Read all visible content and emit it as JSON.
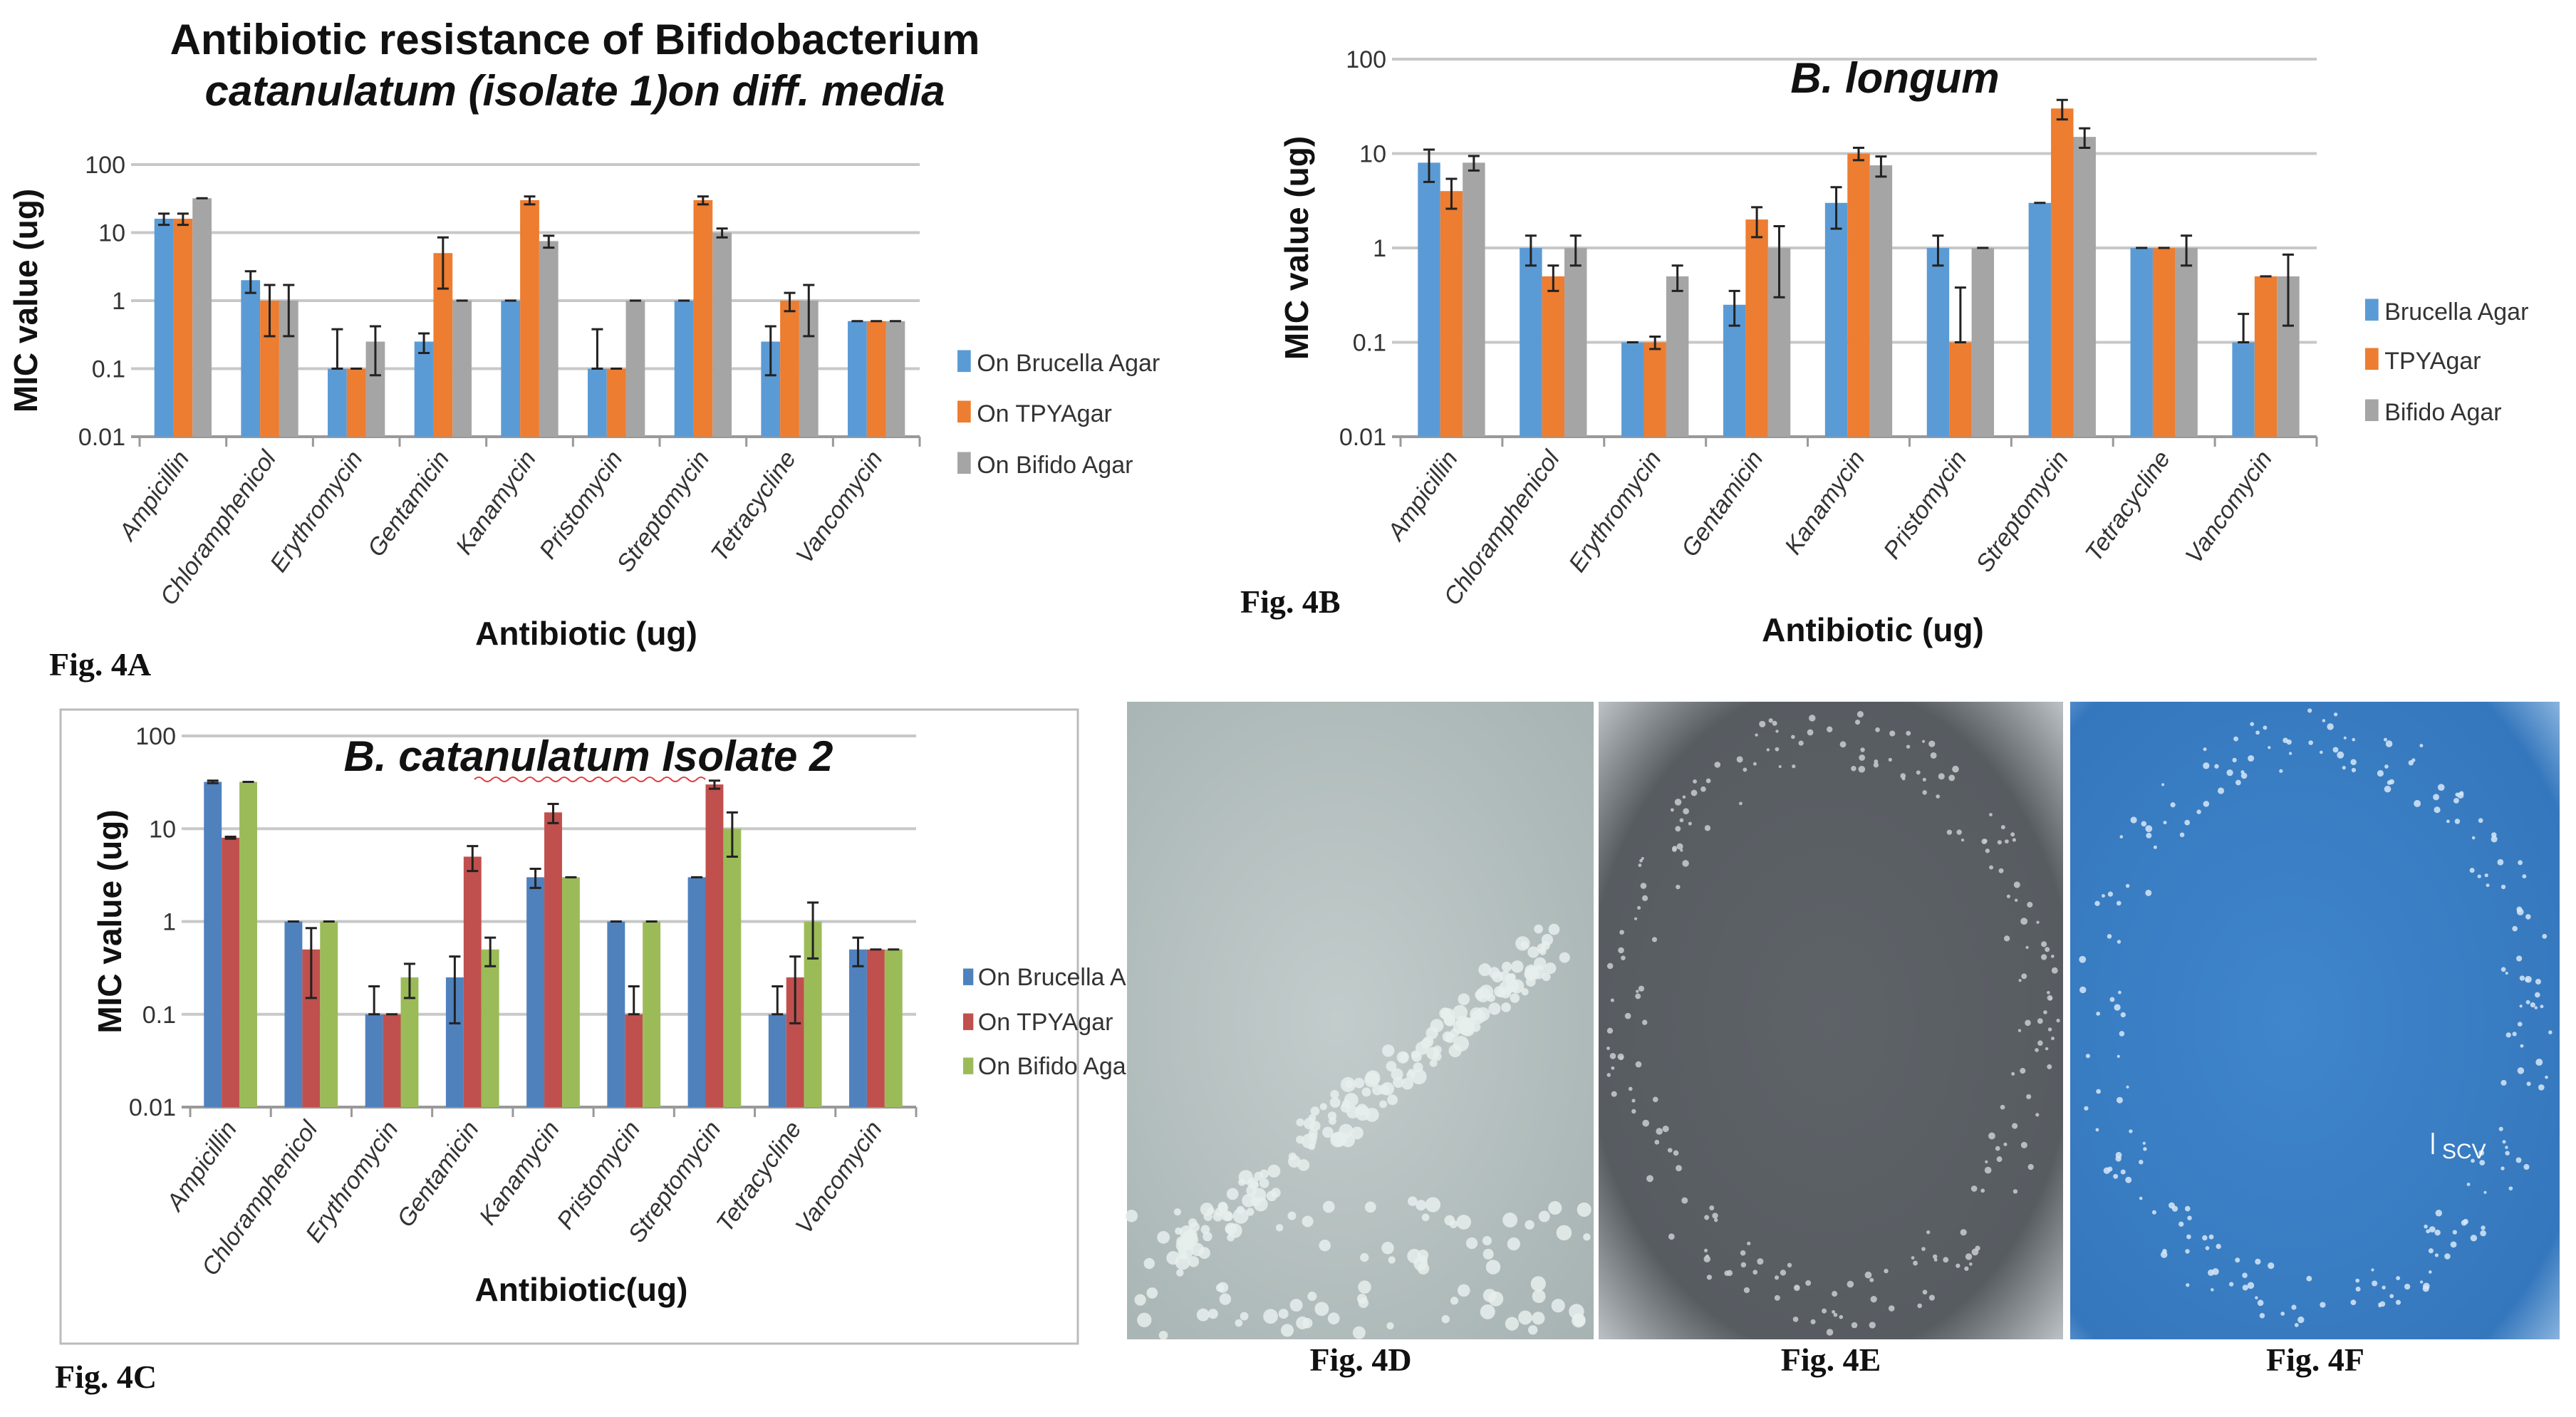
{
  "chart_data": [
    {
      "id": "A",
      "type": "bar",
      "title_lines": [
        "Antibiotic resistance of Bifidobacterium",
        "catanulatum (isolate 1)on diff. media"
      ],
      "figure_label": "Fig. 4A",
      "xlabel": "Antibiotic (ug)",
      "ylabel": "MIC value (ug)",
      "yscale": "log",
      "ylim": [
        0.01,
        100
      ],
      "yticks": [
        "0.01",
        "0.1",
        "1",
        "10",
        "100"
      ],
      "grid": true,
      "legend_position": "right",
      "categories": [
        "Ampicillin",
        "Chloramphenicol",
        "Erythromycin",
        "Gentamicin",
        "Kanamycin",
        "Pristomycin",
        "Streptomycin",
        "Tetracycline",
        "Vancomycin"
      ],
      "series": [
        {
          "name": "On Brucella Agar",
          "color": "#5b9bd5",
          "values": [
            16,
            2,
            0.1,
            0.25,
            1,
            0.1,
            1,
            0.25,
            0.5
          ],
          "error": [
            3,
            0.7,
            0.28,
            0.08,
            0,
            0.28,
            0,
            0.17,
            0
          ]
        },
        {
          "name": "On TPYAgar",
          "color": "#ed7d31",
          "values": [
            16,
            1,
            0.1,
            5,
            30,
            0.1,
            30,
            1,
            0.5
          ],
          "error": [
            3,
            0.7,
            0,
            3.5,
            4,
            0,
            4,
            0.3,
            0
          ]
        },
        {
          "name": "On Bifido Agar",
          "color": "#a5a5a5",
          "values": [
            32,
            1,
            0.25,
            1,
            7.5,
            1,
            10,
            1,
            0.5
          ],
          "error": [
            0,
            0.7,
            0.17,
            0,
            1.5,
            0,
            1.5,
            0.7,
            0
          ]
        }
      ]
    },
    {
      "id": "B",
      "type": "bar",
      "title_lines": [
        "B. longum"
      ],
      "figure_label": "Fig. 4B",
      "xlabel": "Antibiotic (ug)",
      "ylabel": "MIC value (ug)",
      "yscale": "log",
      "ylim": [
        0.01,
        100
      ],
      "yticks": [
        "0.01",
        "0.1",
        "1",
        "10",
        "100"
      ],
      "grid": true,
      "legend_position": "right",
      "categories": [
        "Ampicillin",
        "Chloramphenicol",
        "Erythromycin",
        "Gentamicin",
        "Kanamycin",
        "Pristomycin",
        "Streptomycin",
        "Tetracycline",
        "Vancomycin"
      ],
      "series": [
        {
          "name": "Brucella Agar",
          "color": "#5b9bd5",
          "values": [
            8,
            1,
            0.1,
            0.25,
            3,
            1,
            3,
            1,
            0.1
          ],
          "error": [
            3,
            0.35,
            0,
            0.1,
            1.4,
            0.35,
            0,
            0,
            0.1
          ]
        },
        {
          "name": "TPYAgar",
          "color": "#ed7d31",
          "values": [
            4,
            0.5,
            0.1,
            2,
            10,
            0.1,
            30,
            1,
            0.5
          ],
          "error": [
            1.4,
            0.15,
            0.015,
            0.7,
            1.5,
            0.28,
            7,
            0,
            0
          ]
        },
        {
          "name": "Bifido Agar",
          "color": "#a5a5a5",
          "values": [
            8,
            1,
            0.5,
            1,
            7.5,
            1,
            15,
            1,
            0.5
          ],
          "error": [
            1.4,
            0.35,
            0.15,
            0.7,
            1.8,
            0,
            3.5,
            0.35,
            0.35
          ]
        }
      ]
    },
    {
      "id": "C",
      "type": "bar",
      "title_lines": [
        "B. catanulatum  Isolate 2"
      ],
      "figure_label": "Fig. 4C",
      "xlabel": "Antibiotic(ug)",
      "ylabel": "MIC value (ug)",
      "yscale": "log",
      "ylim": [
        0.01,
        100
      ],
      "yticks": [
        "0.01",
        "0.1",
        "1",
        "10",
        "100"
      ],
      "grid": true,
      "legend_position": "right",
      "categories": [
        "Ampicillin",
        "Chloramphenicol",
        "Erythromycin",
        "Gentamicin",
        "Kanamycin",
        "Pristomycin",
        "Streptomycin",
        "Tetracycline",
        "Vancomycin"
      ],
      "series": [
        {
          "name": "On Brucella Agar",
          "color": "#4f81bd",
          "values": [
            32,
            1,
            0.1,
            0.25,
            3,
            1,
            3,
            0.1,
            0.5
          ],
          "error": [
            1,
            0,
            0.1,
            0.17,
            0.7,
            0,
            0,
            0.1,
            0.17
          ]
        },
        {
          "name": "On TPYAgar",
          "color": "#c0504d",
          "values": [
            8,
            0.5,
            0.1,
            5,
            15,
            0.1,
            30,
            0.25,
            0.5
          ],
          "error": [
            0.2,
            0.35,
            0,
            1.5,
            3.5,
            0.1,
            3,
            0.17,
            0
          ]
        },
        {
          "name": "On Bifido Agar",
          "color": "#9bbb59",
          "values": [
            32,
            1,
            0.25,
            0.5,
            3,
            1,
            10,
            1,
            0.5
          ],
          "error": [
            0,
            0,
            0.1,
            0.17,
            0,
            0,
            5,
            0.6,
            0
          ]
        }
      ]
    }
  ],
  "photos": [
    {
      "figure_label": "Fig. 4D",
      "plate_color": "#b7c3c2",
      "colony_color": "#e6eeec"
    },
    {
      "figure_label": "Fig. 4E",
      "plate_color": "#5c6166",
      "colony_color": "#c9cdd0"
    },
    {
      "figure_label": "Fig. 4F",
      "plate_color": "#3b7fc6",
      "colony_color": "#d7e8f7",
      "annotation": "SCV"
    }
  ]
}
